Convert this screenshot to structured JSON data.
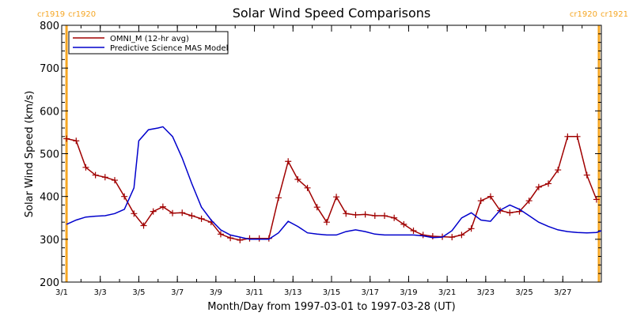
{
  "chart_data": {
    "type": "line",
    "title": "Solar Wind Speed Comparisons",
    "xlabel": "Month/Day from 1997-03-01 to 1997-03-28 (UT)",
    "ylabel": "Solar Wind Speed (km/s)",
    "xlim": [
      "1997-03-01",
      "1997-03-29"
    ],
    "ylim": [
      200,
      800
    ],
    "y_ticks": [
      200,
      300,
      400,
      500,
      600,
      700,
      800
    ],
    "x_ticks": [
      {
        "date": "1997-03-01",
        "label": "3/1"
      },
      {
        "date": "1997-03-03",
        "label": "3/3"
      },
      {
        "date": "1997-03-05",
        "label": "3/5"
      },
      {
        "date": "1997-03-07",
        "label": "3/7"
      },
      {
        "date": "1997-03-09",
        "label": "3/9"
      },
      {
        "date": "1997-03-11",
        "label": "3/11"
      },
      {
        "date": "1997-03-13",
        "label": "3/13"
      },
      {
        "date": "1997-03-15",
        "label": "3/15"
      },
      {
        "date": "1997-03-17",
        "label": "3/17"
      },
      {
        "date": "1997-03-19",
        "label": "3/19"
      },
      {
        "date": "1997-03-21",
        "label": "3/21"
      },
      {
        "date": "1997-03-23",
        "label": "3/23"
      },
      {
        "date": "1997-03-25",
        "label": "3/25"
      },
      {
        "date": "1997-03-27",
        "label": "3/27"
      }
    ],
    "grid": false,
    "legend_position": "top-left",
    "carrington_markers": [
      {
        "date": "1997-03-01 06:00",
        "left_label": "cr1919",
        "right_label": "cr1920",
        "color": "#f5a623"
      },
      {
        "date": "1997-03-28 21:00",
        "left_label": "cr1920",
        "right_label": "cr1921",
        "color": "#f5a623"
      }
    ],
    "series": [
      {
        "name": "OMNI_M (12-hr avg)",
        "color": "#a00000",
        "marker": "plus",
        "x": [
          "1997-03-01 06:00",
          "1997-03-01 18:00",
          "1997-03-02 06:00",
          "1997-03-02 18:00",
          "1997-03-03 06:00",
          "1997-03-03 18:00",
          "1997-03-04 06:00",
          "1997-03-04 18:00",
          "1997-03-05 06:00",
          "1997-03-05 18:00",
          "1997-03-06 06:00",
          "1997-03-06 18:00",
          "1997-03-07 06:00",
          "1997-03-07 18:00",
          "1997-03-08 06:00",
          "1997-03-08 18:00",
          "1997-03-09 06:00",
          "1997-03-09 18:00",
          "1997-03-10 06:00",
          "1997-03-10 18:00",
          "1997-03-11 06:00",
          "1997-03-11 18:00",
          "1997-03-12 06:00",
          "1997-03-12 18:00",
          "1997-03-13 06:00",
          "1997-03-13 18:00",
          "1997-03-14 06:00",
          "1997-03-14 18:00",
          "1997-03-15 06:00",
          "1997-03-15 18:00",
          "1997-03-16 06:00",
          "1997-03-16 18:00",
          "1997-03-17 06:00",
          "1997-03-17 18:00",
          "1997-03-18 06:00",
          "1997-03-18 18:00",
          "1997-03-19 06:00",
          "1997-03-19 18:00",
          "1997-03-20 06:00",
          "1997-03-20 18:00",
          "1997-03-21 06:00",
          "1997-03-21 18:00",
          "1997-03-22 06:00",
          "1997-03-22 18:00",
          "1997-03-23 06:00",
          "1997-03-23 18:00",
          "1997-03-24 06:00",
          "1997-03-24 18:00",
          "1997-03-25 06:00",
          "1997-03-25 18:00",
          "1997-03-26 06:00",
          "1997-03-26 18:00",
          "1997-03-27 06:00",
          "1997-03-27 18:00",
          "1997-03-28 06:00",
          "1997-03-28 18:00"
        ],
        "y": [
          535,
          530,
          468,
          450,
          445,
          438,
          400,
          360,
          332,
          365,
          376,
          361,
          362,
          355,
          348,
          340,
          312,
          303,
          298,
          302,
          302,
          302,
          397,
          482,
          440,
          420,
          375,
          340,
          399,
          360,
          357,
          358,
          355,
          355,
          350,
          335,
          320,
          310,
          307,
          306,
          305,
          310,
          325,
          390,
          400,
          367,
          362,
          365,
          390,
          422,
          430,
          462,
          540,
          540,
          450,
          393
        ]
      },
      {
        "name": "Predictive Science MAS Model",
        "color": "#0000cc",
        "marker": "none",
        "x": [
          "1997-03-01 06:00",
          "1997-03-01 18:00",
          "1997-03-02 06:00",
          "1997-03-02 18:00",
          "1997-03-03 06:00",
          "1997-03-03 18:00",
          "1997-03-04 06:00",
          "1997-03-04 18:00",
          "1997-03-05 00:00",
          "1997-03-05 12:00",
          "1997-03-06 00:00",
          "1997-03-06 06:00",
          "1997-03-06 18:00",
          "1997-03-07 06:00",
          "1997-03-07 18:00",
          "1997-03-08 06:00",
          "1997-03-08 18:00",
          "1997-03-09 06:00",
          "1997-03-09 18:00",
          "1997-03-10 06:00",
          "1997-03-10 18:00",
          "1997-03-11 06:00",
          "1997-03-11 18:00",
          "1997-03-12 06:00",
          "1997-03-12 18:00",
          "1997-03-13 06:00",
          "1997-03-13 18:00",
          "1997-03-14 06:00",
          "1997-03-14 18:00",
          "1997-03-15 06:00",
          "1997-03-15 18:00",
          "1997-03-16 06:00",
          "1997-03-16 18:00",
          "1997-03-17 06:00",
          "1997-03-17 18:00",
          "1997-03-18 06:00",
          "1997-03-18 18:00",
          "1997-03-19 06:00",
          "1997-03-19 18:00",
          "1997-03-20 06:00",
          "1997-03-20 18:00",
          "1997-03-21 06:00",
          "1997-03-21 18:00",
          "1997-03-22 06:00",
          "1997-03-22 18:00",
          "1997-03-23 06:00",
          "1997-03-23 18:00",
          "1997-03-24 06:00",
          "1997-03-24 18:00",
          "1997-03-25 06:00",
          "1997-03-25 18:00",
          "1997-03-26 06:00",
          "1997-03-26 18:00",
          "1997-03-27 06:00",
          "1997-03-27 18:00",
          "1997-03-28 06:00",
          "1997-03-28 18:00",
          "1997-03-29 00:00"
        ],
        "y": [
          335,
          345,
          352,
          354,
          355,
          360,
          370,
          420,
          530,
          556,
          560,
          563,
          540,
          490,
          430,
          375,
          345,
          322,
          310,
          305,
          300,
          300,
          300,
          315,
          342,
          330,
          315,
          312,
          310,
          310,
          318,
          322,
          318,
          312,
          310,
          310,
          310,
          310,
          308,
          304,
          305,
          320,
          350,
          362,
          345,
          342,
          368,
          380,
          370,
          355,
          340,
          330,
          322,
          318,
          316,
          315,
          316,
          320
        ]
      }
    ]
  }
}
